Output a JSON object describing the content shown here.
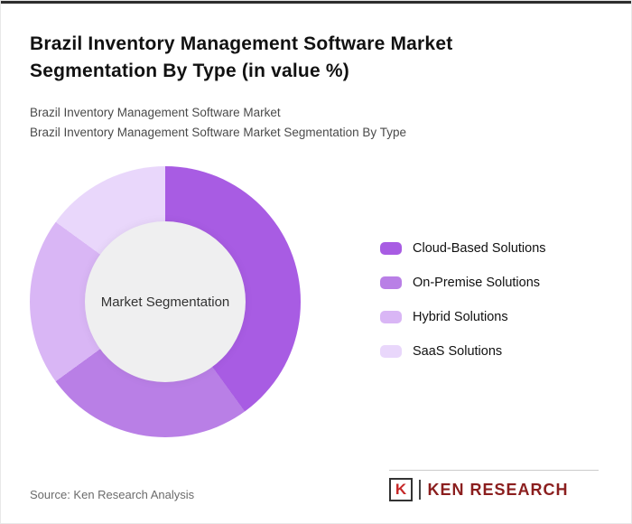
{
  "page": {
    "title": "Brazil Inventory Management Software Market Segmentation By Type (in value %)",
    "subtitle_line1": "Brazil Inventory Management Software Market",
    "subtitle_line2": "Brazil Inventory Management Software Market Segmentation By Type",
    "source": "Source: Ken Research Analysis"
  },
  "logo": {
    "k_letter": "K",
    "text": "KEN RESEARCH",
    "k_color": "#c62828",
    "text_color": "#8b1e1e"
  },
  "chart_data": {
    "type": "pie",
    "donut": true,
    "title": "Brazil Inventory Management Software Market Segmentation By Type (in value %)",
    "center_label": "Market Segmentation",
    "categories": [
      "Cloud-Based Solutions",
      "On-Premise Solutions",
      "Hybrid Solutions",
      "SaaS Solutions"
    ],
    "values": [
      40,
      25,
      20,
      15
    ],
    "colors": [
      "#a85ce3",
      "#b97fe6",
      "#d9b6f5",
      "#e9d7fb"
    ],
    "legend_position": "right",
    "start_angle_deg": 0,
    "hole_color": "#efeff0"
  }
}
